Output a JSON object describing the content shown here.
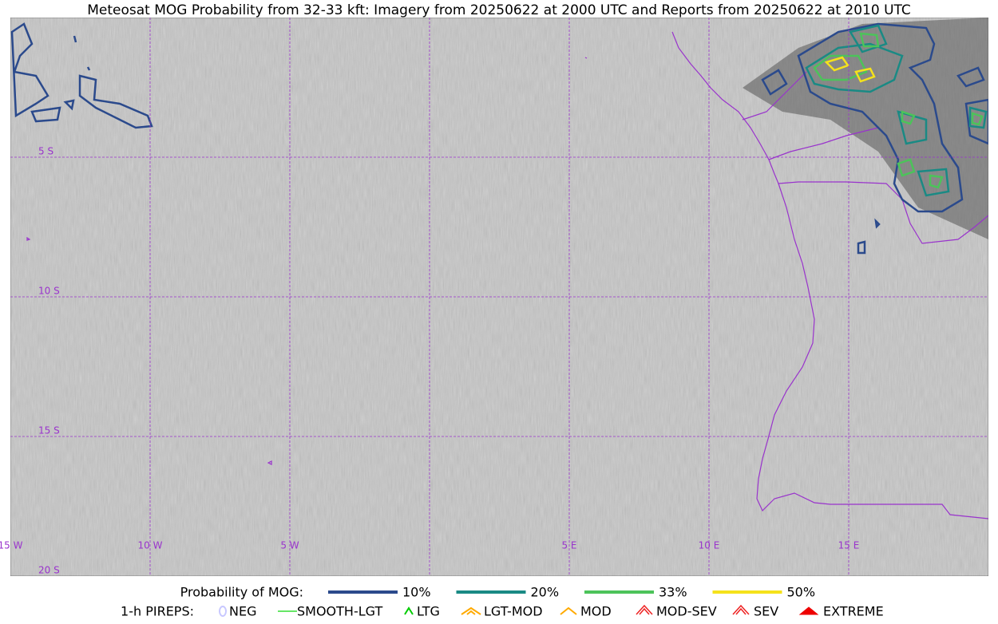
{
  "title": "Meteosat MOG Probability from 32-33 kft: Imagery from 20250622 at 2000 UTC and Reports from 20250622 at 2010 UTC",
  "grid_labels": {
    "lat": [
      "5 S",
      "10 S",
      "15 S",
      "20 S"
    ],
    "lon": [
      "15 W",
      "10 W",
      "5 W",
      "5 E",
      "10 E",
      "15 E"
    ]
  },
  "legend": {
    "probability": {
      "label": "Probability of MOG:",
      "items": [
        {
          "label": "10%",
          "color": "#2b4a8c"
        },
        {
          "label": "20%",
          "color": "#1a8a84"
        },
        {
          "label": "33%",
          "color": "#4cc35a"
        },
        {
          "label": "50%",
          "color": "#f5e21b"
        }
      ]
    },
    "pireps": {
      "label": "1-h PIREPS:",
      "items": [
        {
          "label": "NEG",
          "color": "#c8c8ff"
        },
        {
          "label": "SMOOTH-LGT",
          "color": "#33dd33"
        },
        {
          "label": "LTG",
          "color": "#00cc00"
        },
        {
          "label": "LGT-MOD",
          "color": "#ffaa00"
        },
        {
          "label": "MOD",
          "color": "#ffaa00"
        },
        {
          "label": "MOD-SEV",
          "color": "#ee2222"
        },
        {
          "label": "SEV",
          "color": "#ee2222"
        },
        {
          "label": "EXTREME",
          "color": "#ee0000"
        }
      ]
    }
  }
}
